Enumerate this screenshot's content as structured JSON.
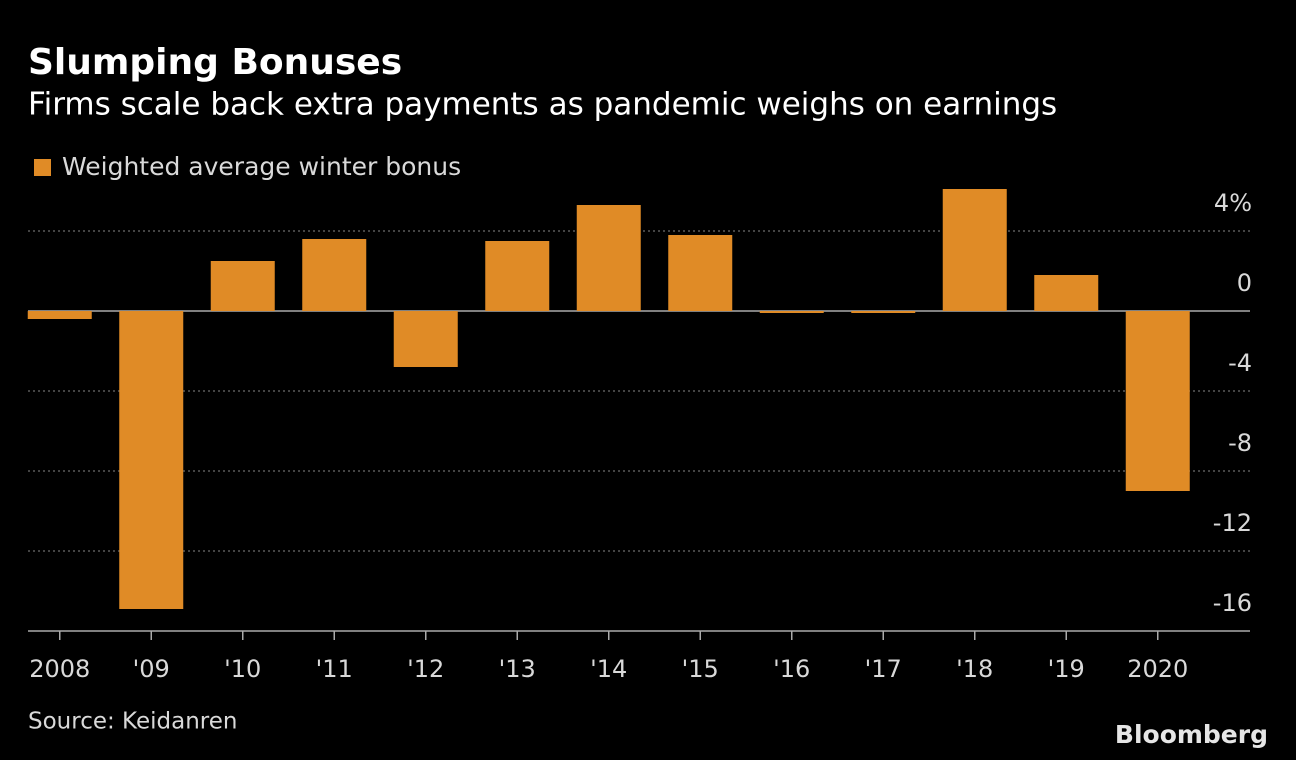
{
  "chart_data": {
    "type": "bar",
    "title": "Slumping Bonuses",
    "subtitle": "Firms scale back extra payments as pandemic weighs on earnings",
    "source": "Source: Keidanren",
    "brand": "Bloomberg",
    "categories": [
      "2008",
      "'09",
      "'10",
      "'11",
      "'12",
      "'13",
      "'14",
      "'15",
      "'16",
      "'17",
      "'18",
      "'19",
      "2020"
    ],
    "series": [
      {
        "name": "Weighted average winter bonus",
        "color": "#e08b26",
        "values": [
          -0.4,
          -14.9,
          2.5,
          3.6,
          -2.8,
          3.5,
          5.3,
          3.8,
          -0.1,
          -0.1,
          6.1,
          1.8,
          -9.0
        ]
      }
    ],
    "ylim": [
      -16,
      6.5
    ],
    "yticks": [
      {
        "value": 4,
        "label": "4%"
      },
      0,
      -4,
      -8,
      -12,
      -16
    ],
    "grid": true
  }
}
